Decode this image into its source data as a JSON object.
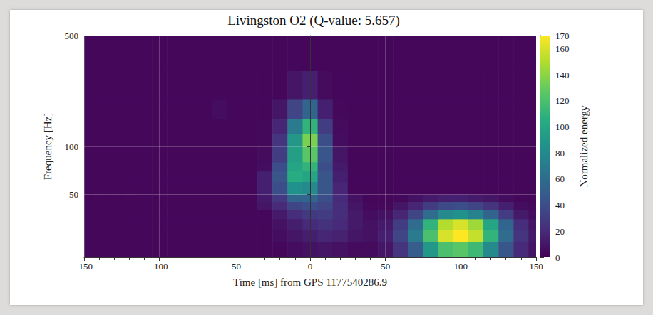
{
  "chart_data": {
    "type": "heatmap",
    "title": "Livingston O2 (Q-value: 5.657)",
    "x_label": "Time [ms] from GPS 1177540286.9",
    "y_label": "Frequency [Hz]",
    "xlim": [
      -150,
      150
    ],
    "xticks": [
      -150,
      -100,
      -50,
      0,
      50,
      100,
      150
    ],
    "ylim": [
      20,
      500
    ],
    "yticks": [
      50,
      100,
      500
    ],
    "log": "y",
    "grid": true,
    "color": "viridis",
    "cells": {
      "time_edges": [
        -150,
        -145,
        -135,
        -125,
        -115,
        -105,
        -95,
        -85,
        -75,
        -65,
        -55,
        -45,
        -35,
        -25,
        -15,
        -5,
        5,
        15,
        25,
        35,
        45,
        55,
        65,
        75,
        85,
        95,
        105,
        115,
        125,
        135,
        145,
        150
      ],
      "freq_edges": [
        20,
        25,
        30,
        35,
        40,
        45,
        50,
        60,
        70,
        80,
        100,
        120,
        150,
        200,
        300,
        500
      ],
      "energy": [
        [
          3,
          3,
          3,
          3,
          3,
          3,
          3,
          3,
          3,
          3,
          3,
          3,
          3,
          3,
          6,
          8,
          10,
          8,
          5,
          5,
          10,
          25,
          50,
          90,
          120,
          125,
          115,
          80,
          45,
          20,
          10
        ],
        [
          3,
          3,
          3,
          3,
          3,
          3,
          3,
          3,
          3,
          3,
          3,
          3,
          3,
          6,
          10,
          14,
          18,
          16,
          10,
          8,
          15,
          35,
          70,
          120,
          160,
          170,
          155,
          110,
          60,
          25,
          12
        ],
        [
          3,
          3,
          3,
          3,
          3,
          3,
          3,
          3,
          3,
          3,
          3,
          3,
          3,
          8,
          14,
          20,
          24,
          20,
          12,
          8,
          12,
          30,
          60,
          110,
          150,
          160,
          145,
          100,
          55,
          22,
          10
        ],
        [
          3,
          3,
          3,
          3,
          3,
          3,
          3,
          3,
          3,
          3,
          3,
          3,
          3,
          12,
          22,
          28,
          30,
          22,
          12,
          6,
          8,
          18,
          35,
          60,
          80,
          85,
          75,
          55,
          30,
          12,
          6
        ],
        [
          3,
          3,
          3,
          3,
          3,
          3,
          3,
          3,
          3,
          3,
          3,
          3,
          10,
          20,
          35,
          40,
          35,
          22,
          10,
          4,
          4,
          10,
          18,
          30,
          38,
          40,
          35,
          25,
          15,
          6,
          4
        ],
        [
          3,
          3,
          3,
          3,
          3,
          3,
          3,
          3,
          3,
          3,
          3,
          3,
          12,
          28,
          55,
          55,
          40,
          20,
          8,
          3,
          3,
          4,
          8,
          12,
          15,
          15,
          12,
          10,
          6,
          3,
          3
        ],
        [
          3,
          3,
          3,
          3,
          3,
          3,
          3,
          3,
          3,
          3,
          3,
          3,
          15,
          40,
          85,
          80,
          45,
          18,
          3,
          3,
          3,
          3,
          3,
          3,
          3,
          3,
          3,
          3,
          3,
          3,
          3
        ],
        [
          3,
          3,
          3,
          3,
          3,
          3,
          3,
          3,
          3,
          3,
          3,
          3,
          15,
          45,
          105,
          100,
          45,
          15,
          3,
          3,
          3,
          3,
          3,
          3,
          3,
          3,
          3,
          3,
          3,
          3,
          3
        ],
        [
          3,
          3,
          3,
          3,
          3,
          3,
          3,
          3,
          3,
          3,
          3,
          3,
          6,
          40,
          100,
          110,
          40,
          12,
          3,
          3,
          3,
          3,
          3,
          3,
          3,
          3,
          3,
          3,
          3,
          3,
          3
        ],
        [
          3,
          3,
          3,
          3,
          3,
          3,
          3,
          3,
          3,
          3,
          3,
          3,
          5,
          30,
          95,
          125,
          45,
          10,
          3,
          3,
          3,
          3,
          3,
          3,
          3,
          3,
          3,
          3,
          3,
          3,
          3
        ],
        [
          3,
          3,
          3,
          3,
          3,
          3,
          3,
          3,
          3,
          3,
          3,
          3,
          4,
          25,
          90,
          135,
          40,
          6,
          3,
          3,
          3,
          3,
          3,
          3,
          3,
          3,
          3,
          3,
          3,
          3,
          3
        ],
        [
          3,
          3,
          3,
          3,
          3,
          3,
          3,
          3,
          3,
          3,
          3,
          3,
          4,
          18,
          70,
          110,
          30,
          5,
          3,
          3,
          3,
          3,
          3,
          3,
          3,
          3,
          3,
          3,
          3,
          3,
          3
        ],
        [
          3,
          3,
          3,
          3,
          3,
          3,
          3,
          3,
          3,
          6,
          3,
          3,
          3,
          10,
          35,
          55,
          15,
          4,
          3,
          3,
          3,
          3,
          3,
          3,
          3,
          3,
          3,
          3,
          3,
          3,
          3
        ],
        [
          3,
          3,
          3,
          3,
          3,
          3,
          3,
          3,
          3,
          3,
          3,
          3,
          3,
          3,
          10,
          15,
          5,
          3,
          3,
          3,
          3,
          3,
          3,
          3,
          3,
          3,
          3,
          3,
          3,
          3,
          3
        ],
        [
          3,
          3,
          3,
          3,
          3,
          3,
          3,
          3,
          3,
          3,
          3,
          3,
          3,
          3,
          3,
          3,
          3,
          3,
          3,
          3,
          3,
          3,
          3,
          3,
          3,
          3,
          3,
          3,
          3,
          3,
          3
        ]
      ]
    },
    "colorbar": {
      "label": "Normalized energy",
      "range": [
        0,
        170
      ],
      "ticks": [
        0,
        20,
        40,
        60,
        80,
        100,
        120,
        140,
        160
      ]
    }
  }
}
